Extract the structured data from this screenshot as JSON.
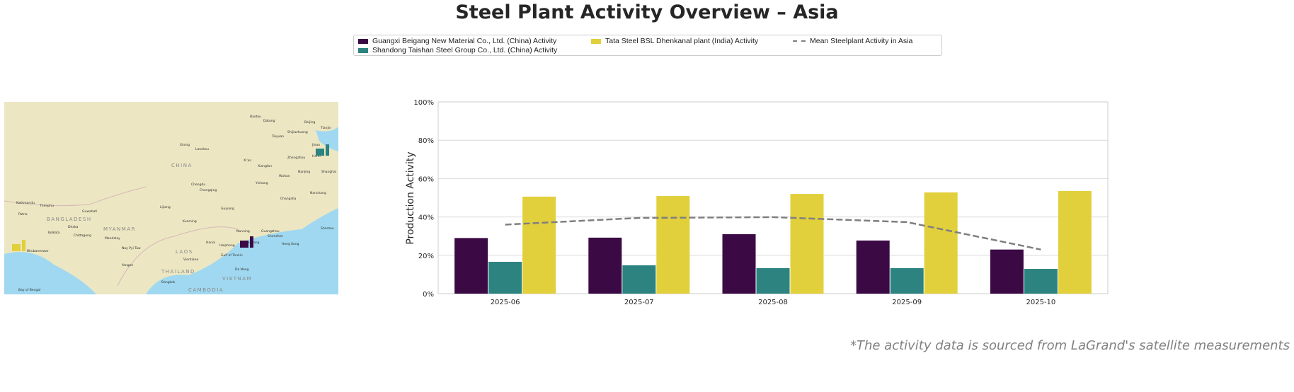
{
  "title": "Steel Plant Activity Overview – Asia",
  "legend": {
    "items": [
      {
        "label": "Guangxi Beigang New Material Co., Ltd. (China) Activity",
        "color": "#3b0a45"
      },
      {
        "label": "Shandong Taishan Steel Group Co., Ltd. (China) Activity",
        "color": "#2d8380"
      },
      {
        "label": "Tata Steel BSL Dhenkanal plant (India) Activity",
        "color": "#e1d03b"
      },
      {
        "label": "Mean Steelplant Activity in Asia",
        "color": "#7f7f7f"
      }
    ]
  },
  "map": {
    "labels": [
      "CHINA",
      "Chengdu",
      "Chongqing",
      "Kunming",
      "Lijiang",
      "Guiyang",
      "Nanning",
      "Guangzhou",
      "Shenzhen",
      "Hong Kong",
      "Hanoi",
      "Haiphong",
      "Zhanjiang",
      "Changsha",
      "Wuhan",
      "Xi'an",
      "Lanzhou",
      "Xining",
      "Zhengzhou",
      "Beijing",
      "Tianjin",
      "Datong",
      "Taiyuan",
      "Shijiazhuang",
      "Jinan",
      "Hefei",
      "Nanjing",
      "Shanghai",
      "Nanchang",
      "Xiangfan",
      "Yichang",
      "Shantou",
      "Baotou",
      "Kathmandu",
      "Thimphu",
      "Guwahati",
      "Patna",
      "Dhaka",
      "Kolkata",
      "Chittagong",
      "Mandalay",
      "Nay Pyi Taw",
      "Yangon",
      "Bangkok",
      "Vientiane",
      "Da Nang",
      "Bhubaneswar",
      "BANGLADESH",
      "MYANMAR",
      "LAOS",
      "THAILAND",
      "VIETNAM",
      "CAMBODIA",
      "Bay of Bengal",
      "Gulf of Tonkin"
    ],
    "plants": [
      {
        "name": "Guangxi Beigang",
        "color": "#3b0a45"
      },
      {
        "name": "Shandong Taishan",
        "color": "#2d8380"
      },
      {
        "name": "Tata Steel BSL",
        "color": "#e1d03b"
      }
    ]
  },
  "chart_data": {
    "type": "bar",
    "categories": [
      "2025-06",
      "2025-07",
      "2025-08",
      "2025-09",
      "2025-10"
    ],
    "series": [
      {
        "name": "Guangxi Beigang New Material Co., Ltd. (China) Activity",
        "values": [
          29,
          29.2,
          31,
          27.7,
          23
        ],
        "color": "#3b0a45"
      },
      {
        "name": "Shandong Taishan Steel Group Co., Ltd. (China) Activity",
        "values": [
          16.6,
          14.8,
          13.3,
          13.3,
          12.9
        ],
        "color": "#2d8380"
      },
      {
        "name": "Tata Steel BSL Dhenkanal plant (India) Activity",
        "values": [
          50.6,
          50.9,
          52,
          52.8,
          53.5
        ],
        "color": "#e1d03b"
      }
    ],
    "line": {
      "name": "Mean Steelplant Activity in Asia",
      "values": [
        36,
        39.5,
        39.9,
        37.3,
        23
      ],
      "color": "#7f7f7f",
      "style": "dashed"
    },
    "ylabel": "Production Activity",
    "xlabel": "",
    "ylim": [
      0,
      100
    ],
    "yticks": [
      "0%",
      "20%",
      "40%",
      "60%",
      "80%",
      "100%"
    ],
    "grid": "horizontal",
    "legend_position": "top-center"
  },
  "footnote": "*The activity data is sourced from LaGrand's satellite measurements"
}
